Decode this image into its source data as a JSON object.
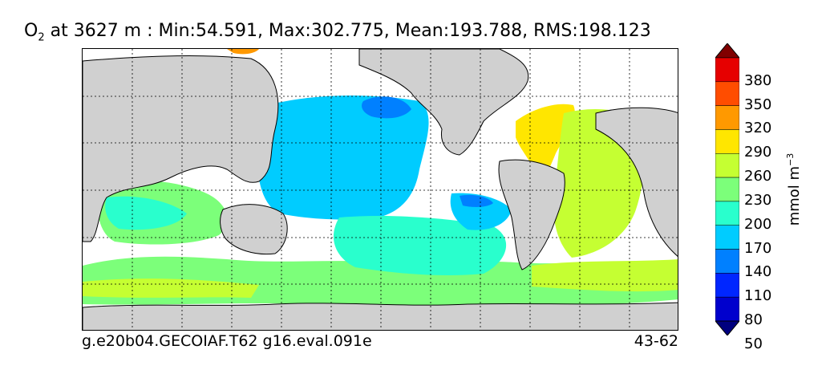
{
  "title": {
    "species": "O",
    "species_sub": "2",
    "rest": " at 3627 m : Min:54.591, Max:302.775, Mean:193.788, RMS:198.123"
  },
  "footer": {
    "case_label": "g.e20b04.GECOIAF.T62 g16.eval.091e",
    "years": "43-62"
  },
  "colorbar": {
    "unit": "mmol m",
    "unit_sup": "−3",
    "ticks": [
      "380",
      "350",
      "320",
      "290",
      "260",
      "230",
      "200",
      "170",
      "140",
      "110",
      "80",
      "50"
    ],
    "levels": [
      {
        "color": "#00007f"
      },
      {
        "color": "#0000cd"
      },
      {
        "color": "#0026ff"
      },
      {
        "color": "#0080ff"
      },
      {
        "color": "#00ccff"
      },
      {
        "color": "#29ffcd"
      },
      {
        "color": "#7cff7a"
      },
      {
        "color": "#c5ff32"
      },
      {
        "color": "#ffe600"
      },
      {
        "color": "#ff9900"
      },
      {
        "color": "#ff4d00"
      },
      {
        "color": "#e60000"
      },
      {
        "color": "#800000"
      }
    ],
    "extend": "both"
  },
  "map": {
    "land_color": "#d0d0d0",
    "missing_color": "#ffffff",
    "grid": "dotted"
  }
}
